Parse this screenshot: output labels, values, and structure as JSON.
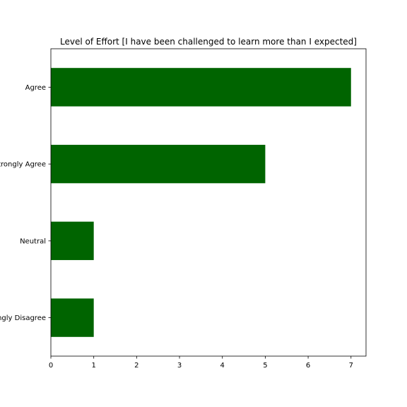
{
  "chart_data": {
    "type": "bar",
    "orientation": "horizontal",
    "title": "Level of Effort [I have been challenged to learn more than I expected]",
    "xlabel": "",
    "ylabel": "",
    "categories": [
      "Agree",
      "Strongly Agree",
      "Neutral",
      "Strongly Disagree"
    ],
    "values": [
      7,
      5,
      1,
      1
    ],
    "xlim": [
      0,
      7.35
    ],
    "xticks": [
      0,
      1,
      2,
      3,
      4,
      5,
      6,
      7
    ],
    "bar_color": "#006400",
    "grid": false,
    "legend": "none"
  }
}
